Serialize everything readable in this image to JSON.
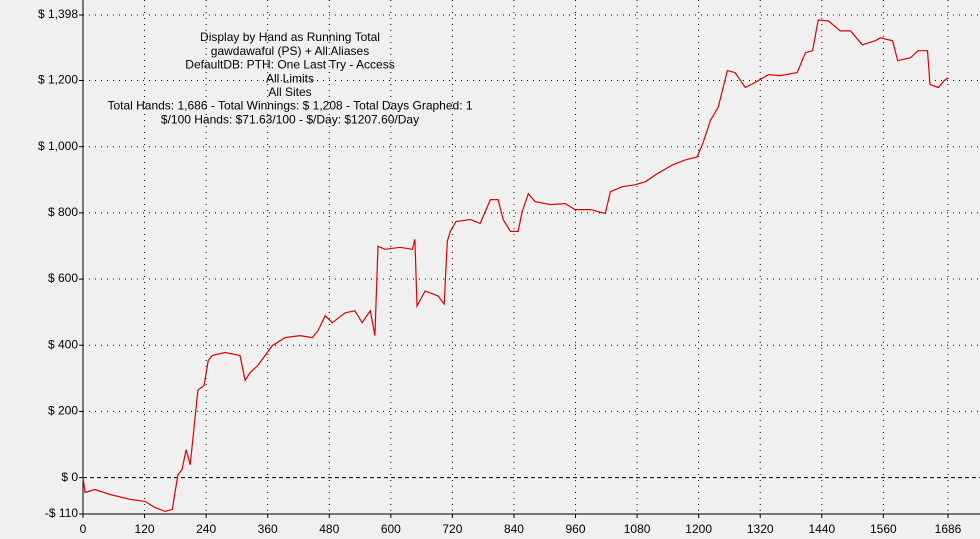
{
  "chart_data": {
    "type": "line",
    "annotations": [
      "Display by Hand as Running Total",
      "gawdawaful (PS) + All Aliases",
      "DefaultDB: PTH: One Last Try - Access",
      "All Limits",
      "All Sites",
      "Total Hands: 1,686 - Total Winnings: $ 1,208 - Total Days Graphed: 1",
      "$/100 Hands: $71.63/100 - $/Day: $1207.60/Day"
    ],
    "x": [
      0,
      4,
      23,
      53,
      92,
      121,
      140,
      160,
      174,
      185,
      193,
      201,
      209,
      216,
      224,
      236,
      244,
      252,
      277,
      306,
      316,
      326,
      341,
      355,
      369,
      394,
      423,
      447,
      458,
      472,
      486,
      511,
      530,
      544,
      560,
      569,
      575,
      589,
      618,
      642,
      647,
      651,
      667,
      692,
      704,
      710,
      716,
      727,
      755,
      774,
      794,
      809,
      819,
      833,
      848,
      856,
      868,
      881,
      911,
      940,
      959,
      989,
      1018,
      1028,
      1051,
      1076,
      1096,
      1119,
      1149,
      1174,
      1197,
      1209,
      1223,
      1238,
      1256,
      1271,
      1291,
      1310,
      1336,
      1359,
      1392,
      1408,
      1422,
      1433,
      1453,
      1476,
      1496,
      1519,
      1544,
      1554,
      1578,
      1588,
      1613,
      1628,
      1646,
      1651,
      1667,
      1679,
      1686
    ],
    "series": [
      {
        "name": "Running Total",
        "color": "#e00000",
        "values": [
          0,
          -45,
          -36,
          -51,
          -66,
          -72,
          -90,
          -102,
          -96,
          9,
          24,
          84,
          39,
          144,
          264,
          279,
          354,
          369,
          378,
          369,
          294,
          318,
          339,
          369,
          399,
          423,
          429,
          423,
          444,
          489,
          468,
          498,
          504,
          468,
          504,
          429,
          699,
          690,
          696,
          690,
          720,
          519,
          564,
          549,
          525,
          714,
          744,
          774,
          780,
          768,
          840,
          840,
          780,
          744,
          744,
          804,
          858,
          834,
          825,
          828,
          810,
          810,
          798,
          864,
          879,
          885,
          894,
          918,
          945,
          960,
          969,
          1014,
          1080,
          1119,
          1230,
          1224,
          1179,
          1194,
          1218,
          1215,
          1224,
          1284,
          1290,
          1383,
          1380,
          1350,
          1350,
          1308,
          1320,
          1329,
          1320,
          1260,
          1269,
          1290,
          1290,
          1188,
          1179,
          1200,
          1208
        ]
      }
    ],
    "xlim": [
      0,
      1686
    ],
    "xticks": [
      0,
      120,
      240,
      360,
      480,
      600,
      720,
      840,
      960,
      1080,
      1200,
      1320,
      1440,
      1560,
      1686
    ],
    "ylim": [
      -110,
      1398
    ],
    "yticks": [
      {
        "value": -110,
        "label": "-$ 110"
      },
      {
        "value": 0,
        "label": "$ 0"
      },
      {
        "value": 200,
        "label": "$ 200"
      },
      {
        "value": 400,
        "label": "$ 400"
      },
      {
        "value": 600,
        "label": "$ 600"
      },
      {
        "value": 800,
        "label": "$ 800"
      },
      {
        "value": 1000,
        "label": "$ 1,000"
      },
      {
        "value": 1200,
        "label": "$ 1,200"
      },
      {
        "value": 1398,
        "label": "$ 1,398"
      }
    ],
    "grid": true
  }
}
